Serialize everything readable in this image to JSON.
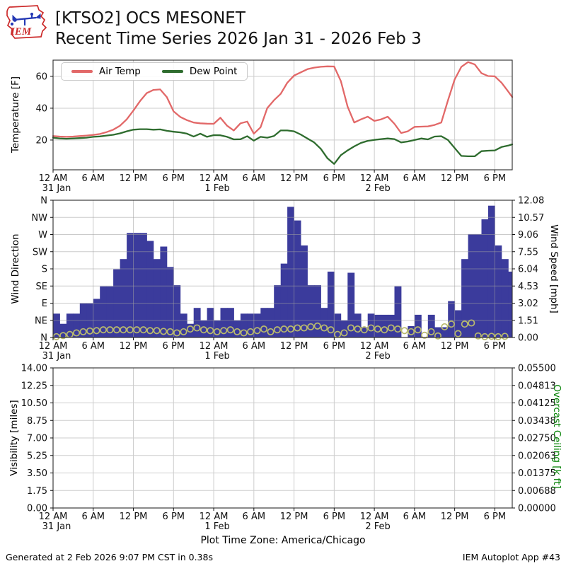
{
  "header": {
    "logo_text": "IEM",
    "title_line1": "[KTSO2] OCS MESONET",
    "title_line2": "Recent Time Series 2026 Jan 31 - 2026 Feb 3"
  },
  "legend": {
    "items": [
      {
        "label": "Air Temp",
        "color": "#e26868"
      },
      {
        "label": "Dew Point",
        "color": "#2e6c2e"
      }
    ]
  },
  "x_axis": {
    "tick_hours": [
      0,
      6,
      12,
      18,
      24,
      30,
      36,
      42,
      48,
      54,
      60,
      66
    ],
    "tick_labels": [
      "12 AM",
      "6 AM",
      "12 PM",
      "6 PM",
      "12 AM",
      "6 AM",
      "12 PM",
      "6 PM",
      "12 AM",
      "6 AM",
      "12 PM",
      "6 PM"
    ],
    "date_labels": [
      {
        "label": "31 Jan",
        "hour": 0
      },
      {
        "label": "1 Feb",
        "hour": 24
      },
      {
        "label": "2 Feb",
        "hour": 48
      }
    ],
    "end_hour": 68.6,
    "x_unit": "hours since 31 Jan 12 AM (America/Chicago)"
  },
  "chart_data": [
    {
      "type": "line",
      "panel": "temperature",
      "ylabel": "Temperature [F]",
      "yticks": [
        20,
        40,
        60
      ],
      "ylim": [
        1.3,
        70.2
      ],
      "grid": true,
      "legend_position": "upper left",
      "x_step_hours": 1,
      "series": [
        {
          "name": "Air Temp",
          "color": "#e26868",
          "values": [
            22.5,
            22.2,
            22,
            22.2,
            22.5,
            22.8,
            23.2,
            23.8,
            25,
            26.5,
            29,
            33,
            38.5,
            44.5,
            49.5,
            51.5,
            51.8,
            47,
            38,
            34.5,
            32.5,
            31,
            30.5,
            30.3,
            30.2,
            34,
            29,
            26,
            30.5,
            31.6,
            24,
            28,
            40,
            45,
            49,
            56,
            60.5,
            62.5,
            64.5,
            65.5,
            66,
            66.3,
            66.2,
            57,
            41,
            31,
            33,
            34.7,
            32,
            33,
            34.7,
            30.2,
            24.4,
            25.5,
            28.3,
            28.4,
            28.6,
            29.5,
            31,
            45,
            58,
            66,
            69,
            67.5,
            62,
            60.2,
            60,
            56,
            50.5,
            47
          ]
        },
        {
          "name": "Dew Point",
          "color": "#2e6c2e",
          "values": [
            21.5,
            21,
            20.8,
            21,
            21.2,
            21.5,
            22,
            22.3,
            22.8,
            23.3,
            24.2,
            25.5,
            26.5,
            26.8,
            26.8,
            26.5,
            26.7,
            25.8,
            25.2,
            24.8,
            24,
            22.2,
            24,
            22,
            23.1,
            23,
            22,
            20.4,
            20.5,
            22.4,
            19.6,
            22,
            21.5,
            22.5,
            26,
            26,
            25.5,
            23.5,
            21,
            18.5,
            14.5,
            8.5,
            5,
            10.5,
            13.5,
            16,
            18.2,
            19.5,
            20.1,
            20.6,
            21,
            20.6,
            18.5,
            19.1,
            20,
            21,
            20.4,
            22.2,
            22.4,
            20,
            15,
            10,
            9.8,
            9.8,
            13,
            13.3,
            13.5,
            15.6,
            16.5,
            17.3
          ]
        }
      ]
    },
    {
      "type": "bar",
      "panel": "wind",
      "ylabel_left": "Wind Direction",
      "yticks_left": [
        "N",
        "NE",
        "E",
        "SE",
        "S",
        "SW",
        "W",
        "NW",
        "N"
      ],
      "ylabel_right": "Wind Speed [mph]",
      "yticks_right": [
        "0.00",
        "1.51",
        "3.02",
        "4.53",
        "6.04",
        "7.55",
        "9.06",
        "10.57",
        "12.08"
      ],
      "ylim_right": [
        0,
        12.08
      ],
      "x_step_hours": 1,
      "series": [
        {
          "name": "Wind Speed",
          "style": "bar",
          "units": "mph",
          "color": "#3b3b9c",
          "values": [
            2.1,
            1.2,
            2.1,
            2.1,
            3.0,
            3.0,
            3.4,
            4.5,
            4.5,
            6.0,
            6.9,
            9.2,
            9.2,
            9.2,
            8.5,
            6.9,
            8.0,
            6.2,
            4.6,
            2.1,
            1.2,
            2.6,
            1.5,
            2.6,
            1.5,
            2.6,
            2.6,
            1.5,
            2.1,
            2.1,
            2.1,
            2.6,
            2.6,
            4.6,
            6.5,
            11.5,
            10.3,
            8.1,
            4.6,
            4.6,
            2.6,
            5.8,
            2.1,
            1.5,
            5.7,
            2.1,
            0.9,
            2.1,
            2.0,
            2.0,
            2.0,
            4.5,
            0,
            1.0,
            2.0,
            0,
            2.0,
            0.9,
            0.9,
            3.2,
            2.4,
            6.9,
            9.1,
            9.1,
            10.4,
            11.6,
            8.1,
            6.9,
            5.8,
            5.8
          ]
        },
        {
          "name": "Wind Direction",
          "style": "open-circle",
          "units": "deg",
          "color": "#b9ba6d",
          "values": [
            2,
            5,
            8,
            12,
            15,
            17,
            18,
            20,
            20,
            20,
            20,
            20,
            20,
            20,
            18,
            18,
            16,
            15,
            12,
            15,
            22,
            25,
            20,
            18,
            15,
            18,
            20,
            15,
            12,
            15,
            18,
            22,
            15,
            20,
            22,
            22,
            25,
            25,
            28,
            30,
            25,
            20,
            8,
            12,
            25,
            22,
            20,
            25,
            22,
            20,
            25,
            22,
            18,
            15,
            20,
            6,
            15,
            4,
            28,
            35,
            10,
            35,
            38,
            4,
            2,
            3,
            2,
            3,
            2,
            3
          ]
        }
      ]
    },
    {
      "type": "line",
      "panel": "visibility",
      "ylabel_left": "Visibility [miles]",
      "yticks_left": [
        "0.00",
        "1.75",
        "3.50",
        "5.25",
        "7.00",
        "8.75",
        "10.50",
        "12.25",
        "14.00"
      ],
      "ylim_left": [
        0,
        14
      ],
      "ylabel_right": "Overcast Ceiling [k ft]",
      "ylabel_right_color": "#008000",
      "yticks_right": [
        "0.00000",
        "0.00688",
        "0.01375",
        "0.02063",
        "0.02750",
        "0.03438",
        "0.04125",
        "0.04813",
        "0.05500"
      ],
      "ylim_right": [
        0,
        0.055
      ],
      "series": []
    }
  ],
  "footer": {
    "timezone_note": "Plot Time Zone: America/Chicago",
    "generated": "Generated at 2 Feb 2026 9:07 PM CST in 0.38s",
    "app": "IEM Autoplot App #43"
  },
  "colors": {
    "air_temp": "#e26868",
    "dew_point": "#2e6c2e",
    "wind_bar": "#3b3b9c",
    "wind_dir_marker": "#b9ba6d",
    "ceiling_label": "#008000",
    "grid": "#cdcdcd",
    "frame": "#2a2a2a",
    "logo_red": "#cc2a2a",
    "logo_blue": "#2438b4"
  }
}
